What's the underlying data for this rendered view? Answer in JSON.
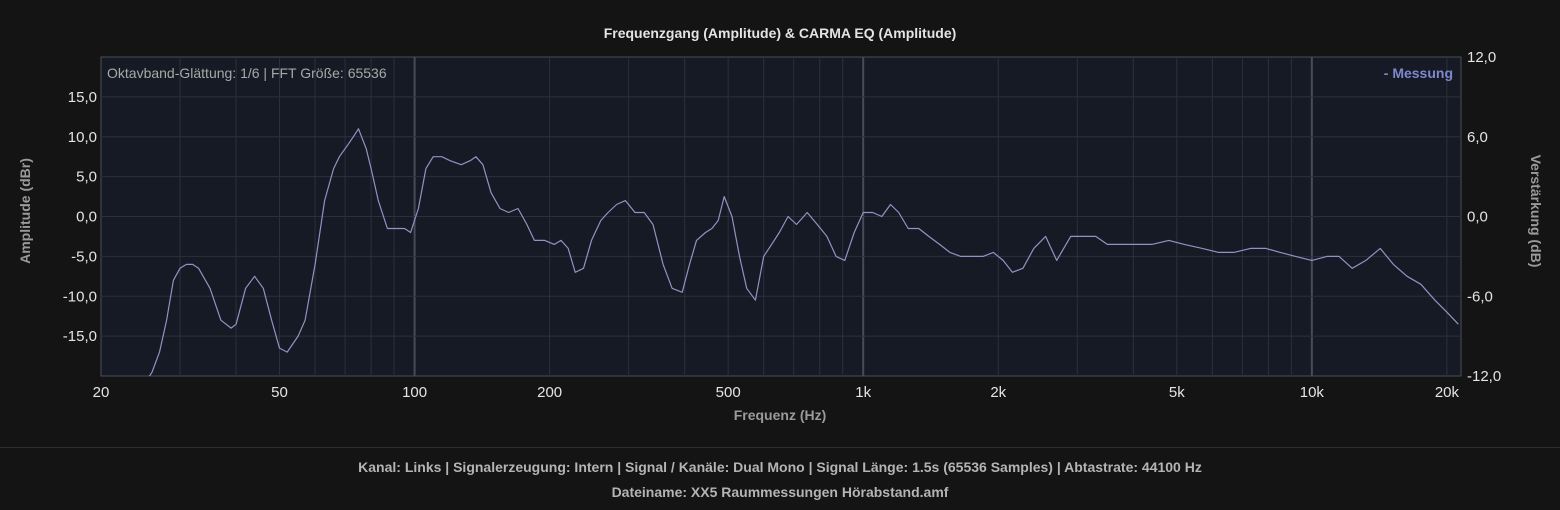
{
  "chart_data": {
    "type": "line",
    "title": "Frequenzgang (Amplitude) & CARMA EQ (Amplitude)",
    "xlabel": "Frequenz (Hz)",
    "ylabel": "Amplitude (dBr)",
    "y2label": "Verstärkung (dB)",
    "xscale": "log",
    "xlim": [
      20,
      21500
    ],
    "ylim": [
      -20,
      20
    ],
    "y2lim": [
      -12,
      12
    ],
    "x_ticks": [
      20,
      50,
      100,
      200,
      500,
      1000,
      2000,
      5000,
      10000,
      20000
    ],
    "x_tick_labels": [
      "20",
      "50",
      "100",
      "200",
      "500",
      "1k",
      "2k",
      "5k",
      "10k",
      "20k"
    ],
    "y_ticks": [
      15,
      10,
      5,
      0,
      -5,
      -10,
      -15
    ],
    "y_tick_labels": [
      "15,0",
      "10,0",
      "5,0",
      "0,0",
      "-5,0",
      "-10,0",
      "-15,0"
    ],
    "y2_ticks": [
      12,
      6,
      0,
      -6,
      -12
    ],
    "y2_tick_labels": [
      "12,0",
      "6,0",
      "0,0",
      "-6,0",
      "-12,0"
    ],
    "annotation": "Oktavband-Glättung: 1/6 | FFT Größe: 65536",
    "legend": {
      "position": "top-right",
      "label": "- Messung"
    },
    "grid": true,
    "colors": {
      "line": "#8e94c4",
      "plot_bg": "#161a24",
      "grid": "#2c303c",
      "decade": "#484c58",
      "legend": "#7e88cc"
    },
    "series": [
      {
        "name": "Messung",
        "x": [
          25,
          26,
          27,
          28,
          29,
          30,
          31,
          32,
          33,
          35,
          37,
          39,
          40,
          42,
          44,
          46,
          48,
          50,
          52,
          55,
          57,
          60,
          63,
          66,
          68,
          71,
          73,
          75,
          78,
          80,
          83,
          87,
          91,
          95,
          98,
          102,
          106,
          110,
          115,
          120,
          127,
          133,
          137,
          142,
          148,
          155,
          162,
          170,
          178,
          185,
          195,
          205,
          212,
          220,
          228,
          238,
          248,
          260,
          270,
          282,
          295,
          310,
          325,
          340,
          358,
          375,
          395,
          410,
          425,
          445,
          460,
          475,
          490,
          510,
          530,
          550,
          575,
          600,
          625,
          650,
          680,
          710,
          750,
          790,
          830,
          870,
          910,
          955,
          1000,
          1050,
          1100,
          1150,
          1200,
          1260,
          1330,
          1400,
          1480,
          1560,
          1650,
          1750,
          1850,
          1950,
          2050,
          2150,
          2270,
          2400,
          2550,
          2700,
          2900,
          3100,
          3300,
          3500,
          3800,
          4100,
          4400,
          4800,
          5200,
          5700,
          6200,
          6700,
          7300,
          7900,
          8500,
          9200,
          10000,
          10800,
          11500,
          12300,
          13200,
          14200,
          15200,
          16300,
          17500,
          18800,
          20000,
          21200
        ],
        "y": [
          -21,
          -19.5,
          -17,
          -13,
          -8,
          -6.5,
          -6,
          -6,
          -6.5,
          -9,
          -13,
          -14,
          -13.5,
          -9,
          -7.5,
          -9,
          -13,
          -16.5,
          -17,
          -15,
          -13,
          -6,
          2,
          6,
          7.5,
          9,
          10,
          11,
          8.5,
          6,
          2,
          -1.5,
          -1.5,
          -1.5,
          -2,
          1,
          6,
          7.5,
          7.5,
          7,
          6.5,
          7,
          7.5,
          6.5,
          3,
          1,
          0.5,
          1,
          -1,
          -3,
          -3,
          -3.5,
          -3,
          -4,
          -7,
          -6.5,
          -3,
          -0.5,
          0.5,
          1.5,
          2,
          0.5,
          0.5,
          -1,
          -6,
          -9,
          -9.5,
          -6,
          -3,
          -2,
          -1.5,
          -0.5,
          2.5,
          0,
          -5,
          -9,
          -10.5,
          -5,
          -3.5,
          -2,
          0,
          -1,
          0.5,
          -1,
          -2.5,
          -5,
          -5.5,
          -2,
          0.5,
          0.5,
          0,
          1.5,
          0.5,
          -1.5,
          -1.5,
          -2.5,
          -3.5,
          -4.5,
          -5,
          -5,
          -5,
          -4.5,
          -5.5,
          -7,
          -6.5,
          -4,
          -2.5,
          -5.5,
          -2.5,
          -2.5,
          -2.5,
          -3.5,
          -3.5,
          -3.5,
          -3.5,
          -3,
          -3.5,
          -4,
          -4.5,
          -4.5,
          -4,
          -4,
          -4.5,
          -5,
          -5.5,
          -5,
          -5,
          -6.5,
          -5.5,
          -4,
          -6,
          -7.5,
          -8.5,
          -10.5,
          -12,
          -13.5
        ]
      }
    ]
  },
  "footer": {
    "line1": "Kanal: Links  |  Signalerzeugung: Intern  |  Signal / Kanäle: Dual Mono  |  Signal Länge: 1.5s (65536 Samples)  |  Abtastrate: 44100 Hz",
    "line2": "Dateiname: XX5 Raummessungen Hörabstand.amf"
  }
}
